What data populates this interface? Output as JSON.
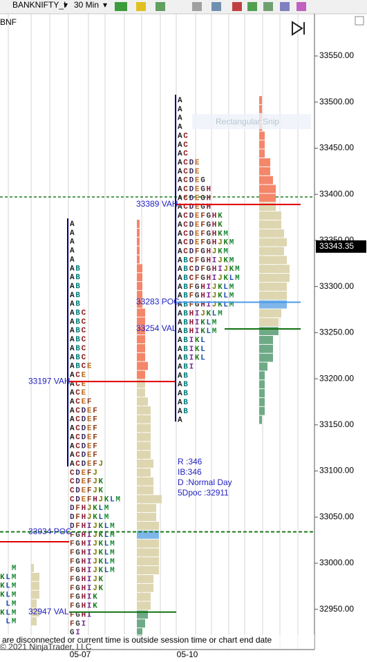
{
  "toolbar": {
    "instrument": "BANKNIFTY_I",
    "interval": "30 Min"
  },
  "chart": {
    "symbol": "BNF",
    "overlay": "Rectangular Snip",
    "price_ticks": [
      {
        "value": 33550,
        "label": "33550.00"
      },
      {
        "value": 33500,
        "label": "33500.00"
      },
      {
        "value": 33450,
        "label": "33450.00"
      },
      {
        "value": 33400,
        "label": "33400.00"
      },
      {
        "value": 33350,
        "label": "33350.00"
      },
      {
        "value": 33300,
        "label": "33300.00"
      },
      {
        "value": 33250,
        "label": "33250.00"
      },
      {
        "value": 33200,
        "label": "33200.00"
      },
      {
        "value": 33150,
        "label": "33150.00"
      },
      {
        "value": 33100,
        "label": "33100.00"
      },
      {
        "value": 33050,
        "label": "33050.00"
      },
      {
        "value": 33000,
        "label": "33000.00"
      },
      {
        "value": 32950,
        "label": "32950.00"
      }
    ],
    "last_price": {
      "value": 33343.35,
      "label": "33343.35"
    },
    "dates": [
      "05-07",
      "05-10"
    ],
    "letter_colors": {
      "A": "#1a1a1a",
      "B": "#007b7b",
      "C": "#8b1a1a",
      "D": "#3a2a5a",
      "E": "#b8651a",
      "F": "#8b3a1a",
      "G": "#333333",
      "H": "#8b1a3a",
      "I": "#7a2a9a",
      "J": "#7a7a00",
      "K": "#1a7a1a",
      "L": "#1a4ab0",
      "M": "#1a8a3a"
    },
    "profiles": [
      {
        "rows": [
          "M",
          "KLM",
          "KLM",
          "KLM",
          "LM",
          "KLM",
          "LM"
        ],
        "levels": []
      },
      {
        "rows": [
          "A",
          "A",
          "A",
          "A",
          "A",
          "AB",
          "AB",
          "AB",
          "AB",
          "AB",
          "ABC",
          "ABC",
          "ABC",
          "ABC",
          "ABC",
          "ABC",
          "ABCE",
          "ACE",
          "ACE",
          "ACE",
          "ACEF",
          "ACDEF",
          "ACDEF",
          "ACDEF",
          "ACDEF",
          "ACDEF",
          "ACDEF",
          "ACDEFJ",
          "CDEFJ",
          "CDEFJK",
          "CDEFJK",
          "CDEFHJKLM",
          "DFHJKLM",
          "DFHJKLM",
          "DFHIJKLM",
          "FGHIJKLM",
          "FGHIJKLM",
          "FGHIJKLM",
          "FGHIJKLM",
          "FGHIJKLM",
          "FGHIJK",
          "FGHIJK",
          "FGHIK",
          "FGHIK",
          "FGHI",
          "FGI",
          "GI"
        ],
        "levels": [
          {
            "value": 33197,
            "label": "33197 VAH"
          },
          {
            "value": 33034,
            "label": "33034 POC"
          },
          {
            "value": 32947,
            "label": "32947 VAL"
          }
        ]
      },
      {
        "rows": [
          "A",
          "A",
          "A",
          "A",
          "AC",
          "AC",
          "AC",
          "ACDE",
          "ACDE",
          "ACDEG",
          "ACDEGH",
          "ACDEGH",
          "ACDEGH",
          "ACDEFGHK",
          "ACDEFGHK",
          "ACDEFGHKM",
          "ACDEFGHJKM",
          "ACDFGHJKM",
          "ABCFGHIJKM",
          "ABCDFGHIJKM",
          "ABCFGHIJKLM",
          "ABFGHIJKLM",
          "ABFGHIJKLM",
          "ABFGHIJKLM",
          "ABHIJKLM",
          "ABHIKLM",
          "ABHIKLM",
          "ABIKL",
          "ABIKL",
          "ABIKL",
          "ABI",
          "AB",
          "AB",
          "AB",
          "AB",
          "AB",
          "A"
        ],
        "levels": [
          {
            "value": 33389,
            "label": "33389 VAH"
          },
          {
            "value": 33283,
            "label": "33283 POC"
          },
          {
            "value": 33254,
            "label": "33254 VAL"
          }
        ]
      }
    ],
    "session_info": [
      "R :346",
      "IB:346",
      "D :Normal Day",
      "5Dpoc :32911"
    ]
  },
  "status": "are disconnected or current time is outside session time or chart end date",
  "copyright": "© 2021 NinjaTrader, LLC"
}
